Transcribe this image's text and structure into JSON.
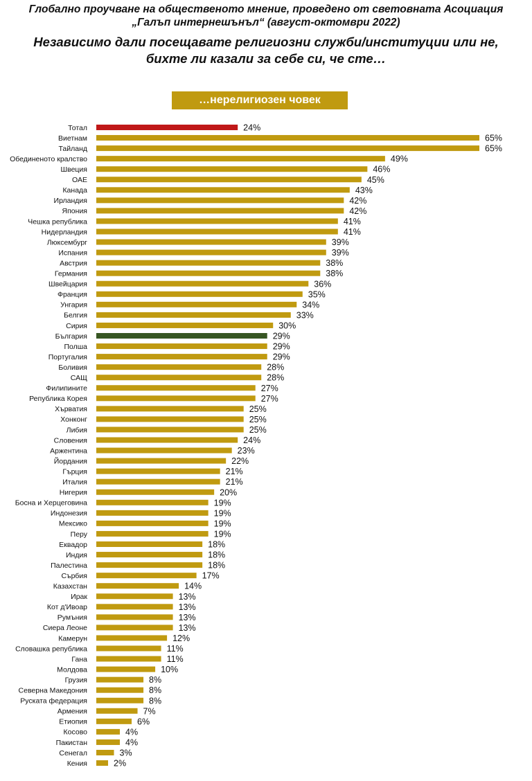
{
  "header": {
    "line1": "Глобално проучване на общественото мнение, проведено от световната Асоциация",
    "line2": "„Галъп интернешънъл“ (август-октомври 2022)",
    "question1": "Независимо дали посещавате религиозни служби/институции или не,",
    "question2": "бихте ли казали за себе си, че сте…",
    "banner": "…нерелигиозен човек"
  },
  "colors": {
    "default_bar": "#c09a10",
    "total_bar": "#c01818",
    "bulgaria_bar": "#375623",
    "banner": "#c09a10"
  },
  "chart_data": {
    "type": "bar",
    "orientation": "horizontal",
    "value_suffix": "%",
    "grid": false,
    "categories": [
      "Тотал",
      "Виетнам",
      "Тайланд",
      "Обединеното кралство",
      "Швеция",
      "ОАЕ",
      "Канада",
      "Ирландия",
      "Япония",
      "Чешка република",
      "Нидерландия",
      "Люксембург",
      "Испания",
      "Австрия",
      "Германия",
      "Швейцария",
      "Франция",
      "Унгария",
      "Белгия",
      "Сирия",
      "България",
      "Полша",
      "Португалия",
      "Боливия",
      "САЩ",
      "Филипините",
      "Република Корея",
      "Хърватия",
      "Хонконг",
      "Либия",
      "Словения",
      "Аржентина",
      "Йордания",
      "Гърция",
      "Италия",
      "Нигерия",
      "Босна и Херцеговина",
      "Индонезия",
      "Мексико",
      "Перу",
      "Еквадор",
      "Индия",
      "Палестина",
      "Сърбия",
      "Казахстан",
      "Ирак",
      "Кот д'Ивоар",
      "Румъния",
      "Сиера Леоне",
      "Камерун",
      "Словашка република",
      "Гана",
      "Молдова",
      "Грузия",
      "Северна Македония",
      "Руската федерация",
      "Армения",
      "Етиопия",
      "Косово",
      "Пакистан",
      "Сенегал",
      "Кения"
    ],
    "values": [
      24,
      65,
      65,
      49,
      46,
      45,
      43,
      42,
      42,
      41,
      41,
      39,
      39,
      38,
      38,
      36,
      35,
      34,
      33,
      30,
      29,
      29,
      29,
      28,
      28,
      27,
      27,
      25,
      25,
      25,
      24,
      23,
      22,
      21,
      21,
      20,
      19,
      19,
      19,
      19,
      18,
      18,
      18,
      17,
      14,
      13,
      13,
      13,
      13,
      12,
      11,
      11,
      10,
      8,
      8,
      8,
      7,
      6,
      4,
      4,
      3,
      2
    ],
    "highlight": {
      "Тотал": "total_bar",
      "България": "bulgaria_bar"
    },
    "xlim": [
      0,
      65
    ]
  }
}
